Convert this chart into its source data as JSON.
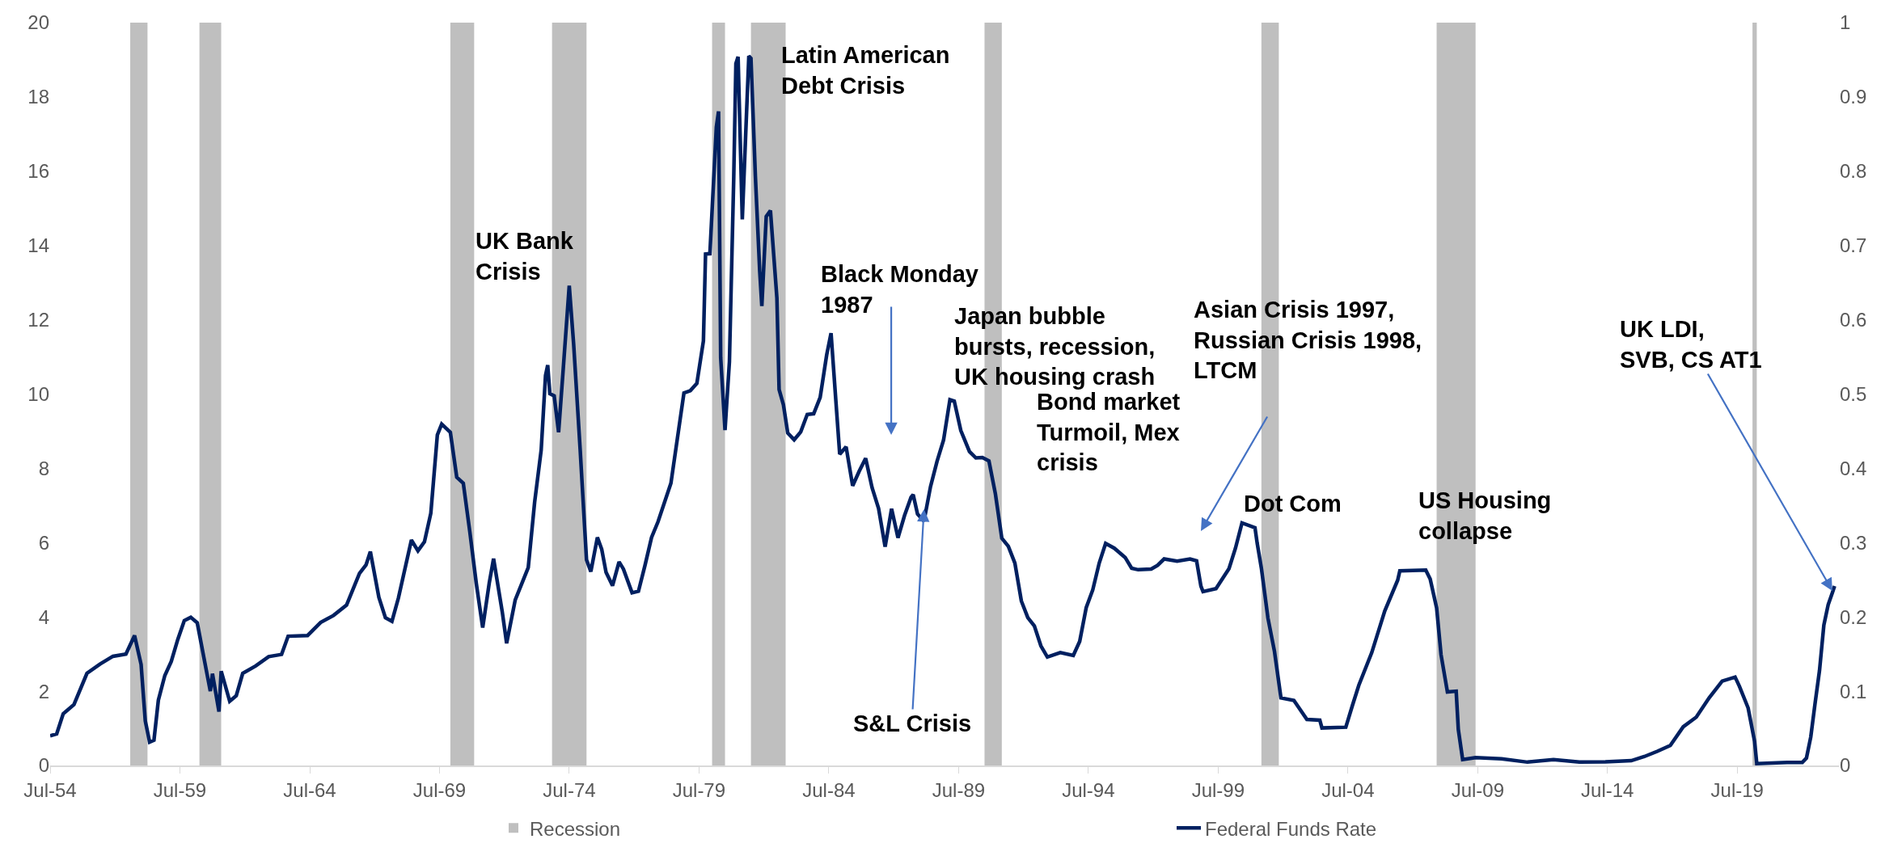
{
  "chart_data": {
    "type": "line",
    "xlim": [
      "1954-07",
      "2023-06"
    ],
    "xticks": [
      {
        "value": "1954-07",
        "label": "Jul-54"
      },
      {
        "value": "1959-07",
        "label": "Jul-59"
      },
      {
        "value": "1964-07",
        "label": "Jul-64"
      },
      {
        "value": "1969-07",
        "label": "Jul-69"
      },
      {
        "value": "1974-07",
        "label": "Jul-74"
      },
      {
        "value": "1979-07",
        "label": "Jul-79"
      },
      {
        "value": "1984-07",
        "label": "Jul-84"
      },
      {
        "value": "1989-07",
        "label": "Jul-89"
      },
      {
        "value": "1994-07",
        "label": "Jul-94"
      },
      {
        "value": "1999-07",
        "label": "Jul-99"
      },
      {
        "value": "2004-07",
        "label": "Jul-04"
      },
      {
        "value": "2009-07",
        "label": "Jul-09"
      },
      {
        "value": "2014-07",
        "label": "Jul-14"
      },
      {
        "value": "2019-07",
        "label": "Jul-19"
      }
    ],
    "ylim": [
      0,
      20
    ],
    "yticks": [
      0,
      2,
      4,
      6,
      8,
      10,
      12,
      14,
      16,
      18,
      20
    ],
    "y2lim": [
      0,
      1
    ],
    "y2ticks": [
      0,
      0.1,
      0.2,
      0.3,
      0.4,
      0.5,
      0.6,
      0.7,
      0.8,
      0.9,
      1
    ],
    "legend": "bottom",
    "series": [
      {
        "name": "Federal Funds Rate",
        "color": "#002060",
        "x": [
          "1954-07",
          "1954-10",
          "1955-01",
          "1955-06",
          "1955-12",
          "1956-06",
          "1956-12",
          "1957-06",
          "1957-10",
          "1958-01",
          "1958-03",
          "1958-05",
          "1958-07",
          "1958-09",
          "1958-12",
          "1959-03",
          "1959-06",
          "1959-09",
          "1959-12",
          "1960-03",
          "1960-06",
          "1960-09",
          "1960-10",
          "1961-01",
          "1961-02",
          "1961-06",
          "1961-09",
          "1961-12",
          "1962-06",
          "1962-12",
          "1963-06",
          "1963-09",
          "1964-06",
          "1964-12",
          "1965-06",
          "1965-12",
          "1966-06",
          "1966-09",
          "1966-11",
          "1967-03",
          "1967-06",
          "1967-09",
          "1967-12",
          "1968-06",
          "1968-09",
          "1968-12",
          "1969-03",
          "1969-06",
          "1969-08",
          "1969-12",
          "1970-03",
          "1970-06",
          "1970-09",
          "1970-12",
          "1971-03",
          "1971-06",
          "1971-08",
          "1971-12",
          "1972-02",
          "1972-06",
          "1972-12",
          "1973-03",
          "1973-06",
          "1973-08",
          "1973-09",
          "1973-10",
          "1973-12",
          "1974-02",
          "1974-04",
          "1974-07",
          "1974-09",
          "1974-12",
          "1975-03",
          "1975-05",
          "1975-08",
          "1975-10",
          "1975-12",
          "1976-03",
          "1976-06",
          "1976-08",
          "1976-12",
          "1977-03",
          "1977-06",
          "1977-09",
          "1977-12",
          "1978-06",
          "1978-12",
          "1979-03",
          "1979-06",
          "1979-09",
          "1979-10",
          "1979-12",
          "1980-03",
          "1980-04",
          "1980-05",
          "1980-07",
          "1980-09",
          "1980-11",
          "1980-12",
          "1981-01",
          "1981-03",
          "1981-06",
          "1981-07",
          "1981-09",
          "1981-11",
          "1981-12",
          "1982-02",
          "1982-04",
          "1982-07",
          "1982-08",
          "1982-10",
          "1982-12",
          "1983-03",
          "1983-06",
          "1983-09",
          "1983-12",
          "1984-03",
          "1984-06",
          "1984-08",
          "1984-10",
          "1984-12",
          "1985-03",
          "1985-06",
          "1985-09",
          "1985-12",
          "1986-03",
          "1986-06",
          "1986-09",
          "1986-12",
          "1987-03",
          "1987-06",
          "1987-09",
          "1987-10",
          "1987-12",
          "1988-03",
          "1988-06",
          "1988-09",
          "1988-12",
          "1989-03",
          "1989-05",
          "1989-08",
          "1989-12",
          "1990-03",
          "1990-06",
          "1990-09",
          "1990-12",
          "1991-03",
          "1991-06",
          "1991-09",
          "1991-12",
          "1992-03",
          "1992-06",
          "1992-09",
          "1992-12",
          "1993-06",
          "1993-12",
          "1994-03",
          "1994-06",
          "1994-09",
          "1994-12",
          "1995-03",
          "1995-07",
          "1995-12",
          "1996-03",
          "1996-06",
          "1996-12",
          "1997-03",
          "1997-06",
          "1997-12",
          "1998-06",
          "1998-09",
          "1998-11",
          "1998-12",
          "1999-06",
          "1999-12",
          "2000-03",
          "2000-06",
          "2000-12",
          "2001-01",
          "2001-03",
          "2001-06",
          "2001-09",
          "2001-12",
          "2002-06",
          "2002-12",
          "2003-06",
          "2003-07",
          "2004-06",
          "2004-09",
          "2004-12",
          "2005-06",
          "2005-12",
          "2006-06",
          "2006-07",
          "2007-07",
          "2007-09",
          "2007-12",
          "2008-02",
          "2008-05",
          "2008-09",
          "2008-10",
          "2008-12",
          "2009-06",
          "2010-06",
          "2011-06",
          "2012-06",
          "2013-06",
          "2014-06",
          "2015-06",
          "2015-12",
          "2016-06",
          "2016-12",
          "2017-06",
          "2017-12",
          "2018-06",
          "2018-12",
          "2019-06",
          "2019-08",
          "2019-12",
          "2020-03",
          "2020-04",
          "2021-06",
          "2022-01",
          "2022-03",
          "2022-05",
          "2022-07",
          "2022-09",
          "2022-11",
          "2023-01",
          "2023-03",
          "2023-04"
        ],
        "values": [
          0.8,
          0.85,
          1.39,
          1.64,
          2.48,
          2.73,
          2.94,
          3.0,
          3.5,
          2.72,
          1.2,
          0.63,
          0.68,
          1.76,
          2.42,
          2.8,
          3.39,
          3.9,
          3.99,
          3.84,
          2.92,
          2.0,
          2.47,
          1.45,
          2.54,
          1.73,
          1.88,
          2.48,
          2.68,
          2.93,
          2.99,
          3.48,
          3.5,
          3.85,
          4.04,
          4.32,
          5.17,
          5.4,
          5.76,
          4.53,
          3.98,
          3.88,
          4.51,
          6.07,
          5.78,
          6.02,
          6.79,
          8.9,
          9.19,
          8.97,
          7.76,
          7.6,
          6.29,
          4.9,
          3.71,
          4.91,
          5.57,
          4.14,
          3.29,
          4.46,
          5.33,
          7.09,
          8.49,
          10.5,
          10.78,
          10.01,
          9.95,
          8.97,
          10.51,
          12.92,
          11.34,
          8.53,
          5.54,
          5.22,
          6.14,
          5.82,
          5.2,
          4.84,
          5.48,
          5.29,
          4.65,
          4.69,
          5.39,
          6.14,
          6.56,
          7.6,
          10.03,
          10.09,
          10.29,
          11.43,
          13.77,
          13.78,
          17.19,
          17.61,
          10.98,
          9.03,
          10.87,
          15.85,
          18.9,
          19.08,
          14.7,
          19.1,
          19.04,
          15.87,
          13.31,
          12.37,
          14.78,
          14.94,
          12.59,
          10.12,
          9.71,
          8.95,
          8.77,
          8.98,
          9.45,
          9.47,
          9.91,
          11.06,
          11.64,
          10.0,
          8.38,
          8.58,
          7.53,
          7.92,
          8.27,
          7.48,
          6.92,
          5.89,
          6.91,
          6.13,
          6.73,
          7.22,
          7.29,
          6.77,
          6.58,
          7.51,
          8.19,
          8.76,
          9.85,
          9.81,
          9.02,
          8.45,
          8.28,
          8.29,
          8.2,
          7.31,
          6.12,
          5.9,
          5.45,
          4.43,
          3.98,
          3.76,
          3.22,
          2.92,
          3.04,
          2.96,
          3.34,
          4.25,
          4.73,
          5.45,
          5.98,
          5.85,
          5.6,
          5.31,
          5.27,
          5.29,
          5.39,
          5.56,
          5.5,
          5.56,
          5.51,
          4.83,
          4.68,
          4.76,
          5.3,
          5.85,
          6.53,
          6.4,
          5.98,
          5.31,
          3.97,
          3.07,
          1.82,
          1.75,
          1.24,
          1.22,
          1.01,
          1.03,
          1.61,
          2.16,
          3.04,
          4.16,
          4.99,
          5.24,
          5.26,
          5.02,
          4.24,
          2.98,
          1.98,
          2.0,
          0.97,
          0.16,
          0.21,
          0.18,
          0.09,
          0.16,
          0.09,
          0.1,
          0.13,
          0.24,
          0.38,
          0.54,
          1.04,
          1.3,
          1.82,
          2.27,
          2.38,
          2.13,
          1.55,
          0.65,
          0.05,
          0.08,
          0.08,
          0.2,
          0.77,
          1.68,
          2.56,
          3.78,
          4.33,
          4.65,
          4.83
        ]
      }
    ],
    "bands": [
      {
        "axis": "x",
        "from": "1957-08",
        "to": "1958-04",
        "label": "Recession",
        "color": "#bfbfbf"
      },
      {
        "axis": "x",
        "from": "1960-04",
        "to": "1961-02",
        "color": "#bfbfbf"
      },
      {
        "axis": "x",
        "from": "1969-12",
        "to": "1970-11",
        "color": "#bfbfbf"
      },
      {
        "axis": "x",
        "from": "1973-11",
        "to": "1975-03",
        "color": "#bfbfbf"
      },
      {
        "axis": "x",
        "from": "1980-01",
        "to": "1980-07",
        "color": "#bfbfbf"
      },
      {
        "axis": "x",
        "from": "1981-07",
        "to": "1982-11",
        "color": "#bfbfbf"
      },
      {
        "axis": "x",
        "from": "1990-07",
        "to": "1991-03",
        "color": "#bfbfbf"
      },
      {
        "axis": "x",
        "from": "2001-03",
        "to": "2001-11",
        "color": "#bfbfbf"
      },
      {
        "axis": "x",
        "from": "2007-12",
        "to": "2009-06",
        "color": "#bfbfbf"
      },
      {
        "axis": "x",
        "from": "2020-02",
        "to": "2020-04",
        "color": "#bfbfbf"
      }
    ],
    "annotations": [
      {
        "text": "UK Bank\nCrisis",
        "x": "1970-11",
        "y": 13.7
      },
      "Latin American\nDebt Crisis",
      "Black Monday\n1987",
      {
        "text": "S&L Crisis",
        "x": "1988-03",
        "y": 6.9
      },
      "Japan bubble\nbursts, recession,\nUK housing crash",
      "Bond market\nTurmoil, Mex\ncrisis",
      "Asian Crisis 1997,\nRussian Crisis 1998,\nLTCM",
      "Dot Com",
      "US Housing\ncollapse",
      {
        "text": "UK LDI,\nSVB, CS AT1",
        "x": "2023-03",
        "y": 4.7
      }
    ]
  }
}
